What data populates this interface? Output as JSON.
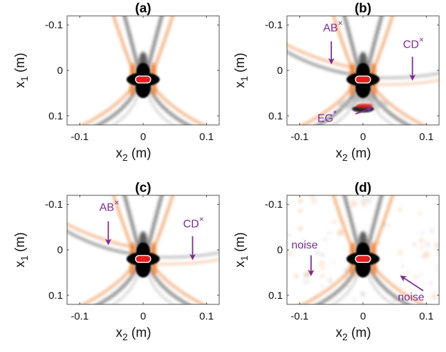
{
  "chart_data": [
    {
      "type": "heatmap",
      "title": "(a)",
      "xlabel_base": "x",
      "xlabel_sub": "2",
      "xlabel_unit": " (m)",
      "ylabel_base": "x",
      "ylabel_sub": "1",
      "ylabel_unit": " (m)",
      "xlim": [
        -0.12,
        0.12
      ],
      "ylim": [
        -0.12,
        0.12
      ],
      "y_reversed": true,
      "xticks": [
        -0.1,
        0,
        0.1
      ],
      "xtick_labels": [
        "-0.1",
        "0",
        "0.1"
      ],
      "yticks": [
        -0.1,
        0,
        0.1
      ],
      "ytick_labels": [
        "-0.1",
        "0",
        "0.1"
      ],
      "source": [
        0,
        0.02
      ],
      "extras": [],
      "annotations": []
    },
    {
      "type": "heatmap",
      "title": "(b)",
      "xlabel_base": "x",
      "xlabel_sub": "2",
      "xlabel_unit": " (m)",
      "ylabel_base": "x",
      "ylabel_sub": "1",
      "ylabel_unit": " (m)",
      "xlim": [
        -0.12,
        0.12
      ],
      "ylim": [
        -0.12,
        0.12
      ],
      "y_reversed": true,
      "xticks": [
        -0.1,
        0,
        0.1
      ],
      "xtick_labels": [
        "-0.1",
        "0",
        "0.1"
      ],
      "yticks": [
        -0.1,
        0,
        0.1
      ],
      "ytick_labels": [
        "-0.1",
        "0",
        "0.1"
      ],
      "source": [
        0,
        0.02
      ],
      "extras": [
        "AB",
        "CD",
        "EG"
      ],
      "annotations": [
        {
          "text": "AB",
          "sup": "×",
          "label_at": [
            -0.063,
            -0.086
          ],
          "arrow_from": [
            -0.05,
            -0.064
          ],
          "arrow_to": [
            -0.05,
            -0.016
          ]
        },
        {
          "text": "CD",
          "sup": "×",
          "label_at": [
            0.063,
            -0.049
          ],
          "arrow_from": [
            0.078,
            -0.03
          ],
          "arrow_to": [
            0.078,
            0.02
          ]
        },
        {
          "text": "EG",
          "sup": "*",
          "label_at": [
            -0.072,
            0.113
          ],
          "arrow_from": [
            -0.012,
            0.096
          ],
          "arrow_to": [
            0.013,
            0.083
          ]
        }
      ]
    },
    {
      "type": "heatmap",
      "title": "(c)",
      "xlabel_base": "x",
      "xlabel_sub": "2",
      "xlabel_unit": " (m)",
      "ylabel_base": "x",
      "ylabel_sub": "1",
      "ylabel_unit": " (m)",
      "xlim": [
        -0.12,
        0.12
      ],
      "ylim": [
        -0.12,
        0.12
      ],
      "y_reversed": true,
      "xticks": [
        -0.1,
        0,
        0.1
      ],
      "xtick_labels": [
        "-0.1",
        "0",
        "0.1"
      ],
      "yticks": [
        -0.1,
        0,
        0.1
      ],
      "ytick_labels": [
        "-0.1",
        "0",
        "0.1"
      ],
      "source": [
        0,
        0.02
      ],
      "extras": [
        "AB",
        "CD"
      ],
      "annotations": [
        {
          "text": "AB",
          "sup": "×",
          "label_at": [
            -0.069,
            -0.086
          ],
          "arrow_from": [
            -0.055,
            -0.063
          ],
          "arrow_to": [
            -0.055,
            -0.013
          ]
        },
        {
          "text": "CD",
          "sup": "×",
          "label_at": [
            0.063,
            -0.049
          ],
          "arrow_from": [
            0.078,
            -0.03
          ],
          "arrow_to": [
            0.078,
            0.02
          ]
        }
      ]
    },
    {
      "type": "heatmap",
      "title": "(d)",
      "xlabel_base": "x",
      "xlabel_sub": "2",
      "xlabel_unit": " (m)",
      "ylabel_base": "x",
      "ylabel_sub": "1",
      "ylabel_unit": " (m)",
      "xlim": [
        -0.12,
        0.12
      ],
      "ylim": [
        -0.12,
        0.12
      ],
      "y_reversed": true,
      "xticks": [
        -0.1,
        0,
        0.1
      ],
      "xtick_labels": [
        "-0.1",
        "0",
        "0.1"
      ],
      "yticks": [
        -0.1,
        0,
        0.1
      ],
      "ytick_labels": [
        "-0.1",
        "0",
        "0.1"
      ],
      "source": [
        0,
        0.02
      ],
      "extras": [
        "noise"
      ],
      "annotations": [
        {
          "text": "noise",
          "sup": "",
          "label_at": [
            -0.113,
            -0.003
          ],
          "arrow_from": [
            -0.082,
            0.012
          ],
          "arrow_to": [
            -0.082,
            0.055
          ]
        },
        {
          "text": "noise",
          "sup": "",
          "label_at": [
            0.055,
            0.112
          ],
          "arrow_from": [
            0.095,
            0.09
          ],
          "arrow_to": [
            0.06,
            0.058
          ]
        }
      ]
    }
  ],
  "colors": {
    "annotation": "#7b2d8e",
    "positive": "#e8792a",
    "source_core": "#e02020",
    "negative": "#000000"
  }
}
